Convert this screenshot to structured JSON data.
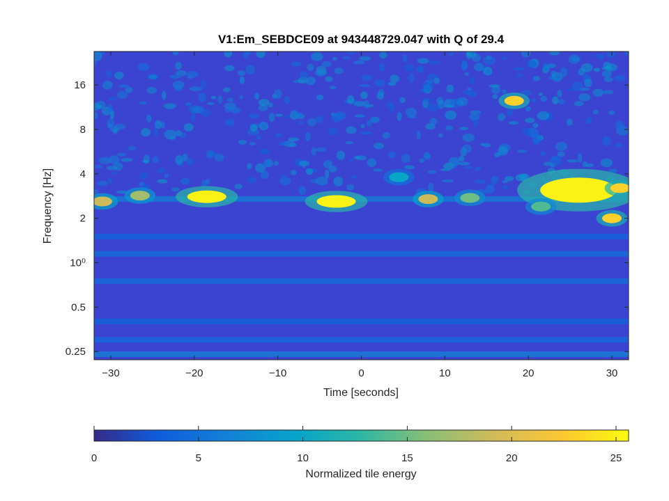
{
  "chart_data": {
    "type": "heatmap",
    "title": "V1:Em_SEBDCE09 at 943448729.047 with Q of 29.4",
    "xlabel": "Time [seconds]",
    "ylabel": "Frequency [Hz]",
    "xlim": [
      -32,
      32
    ],
    "ylim": [
      0.22,
      27
    ],
    "yscale": "log2",
    "xticks": [
      -30,
      -20,
      -10,
      0,
      10,
      20,
      30
    ],
    "xtick_labels": [
      "−30",
      "−20",
      "−10",
      "0",
      "10",
      "20",
      "30"
    ],
    "yticks": [
      0.25,
      0.5,
      1,
      2,
      4,
      8,
      16
    ],
    "ytick_labels": [
      "0.25",
      "0.5",
      "10⁰",
      "2",
      "4",
      "8",
      "16"
    ],
    "colorbar": {
      "label": "Normalized tile energy",
      "min": 0,
      "max": 25.6,
      "ticks": [
        0,
        5,
        10,
        15,
        20,
        25
      ],
      "tick_labels": [
        "0",
        "5",
        "10",
        "15",
        "20",
        "25"
      ],
      "colormap": "parula"
    },
    "background_energy": 2.0,
    "horizontal_bands": [
      {
        "freq_hz": 0.24,
        "energy": 6.5
      },
      {
        "freq_hz": 0.3,
        "energy": 4.5
      },
      {
        "freq_hz": 0.4,
        "energy": 4.0
      },
      {
        "freq_hz": 0.75,
        "energy": 4.5
      },
      {
        "freq_hz": 1.15,
        "energy": 5.0
      },
      {
        "freq_hz": 1.5,
        "energy": 4.0
      },
      {
        "freq_hz": 2.7,
        "energy": 6.0
      }
    ],
    "hotspots": [
      {
        "t": -31,
        "f": 2.6,
        "energy": 19
      },
      {
        "t": -26.5,
        "f": 2.85,
        "energy": 17
      },
      {
        "t": -18.5,
        "f": 2.8,
        "energy": 25
      },
      {
        "t": -3,
        "f": 2.6,
        "energy": 25
      },
      {
        "t": 8,
        "f": 2.7,
        "energy": 19
      },
      {
        "t": 13,
        "f": 2.75,
        "energy": 15
      },
      {
        "t": 18.3,
        "f": 12.5,
        "energy": 23
      },
      {
        "t": 26,
        "f": 3.1,
        "energy": 25
      },
      {
        "t": 30,
        "f": 2.0,
        "energy": 23
      },
      {
        "t": 31,
        "f": 3.2,
        "energy": 23
      },
      {
        "t": 4.5,
        "f": 3.8,
        "energy": 10
      },
      {
        "t": 21.5,
        "f": 2.4,
        "energy": 14
      }
    ],
    "grid": false,
    "legend": "none"
  }
}
